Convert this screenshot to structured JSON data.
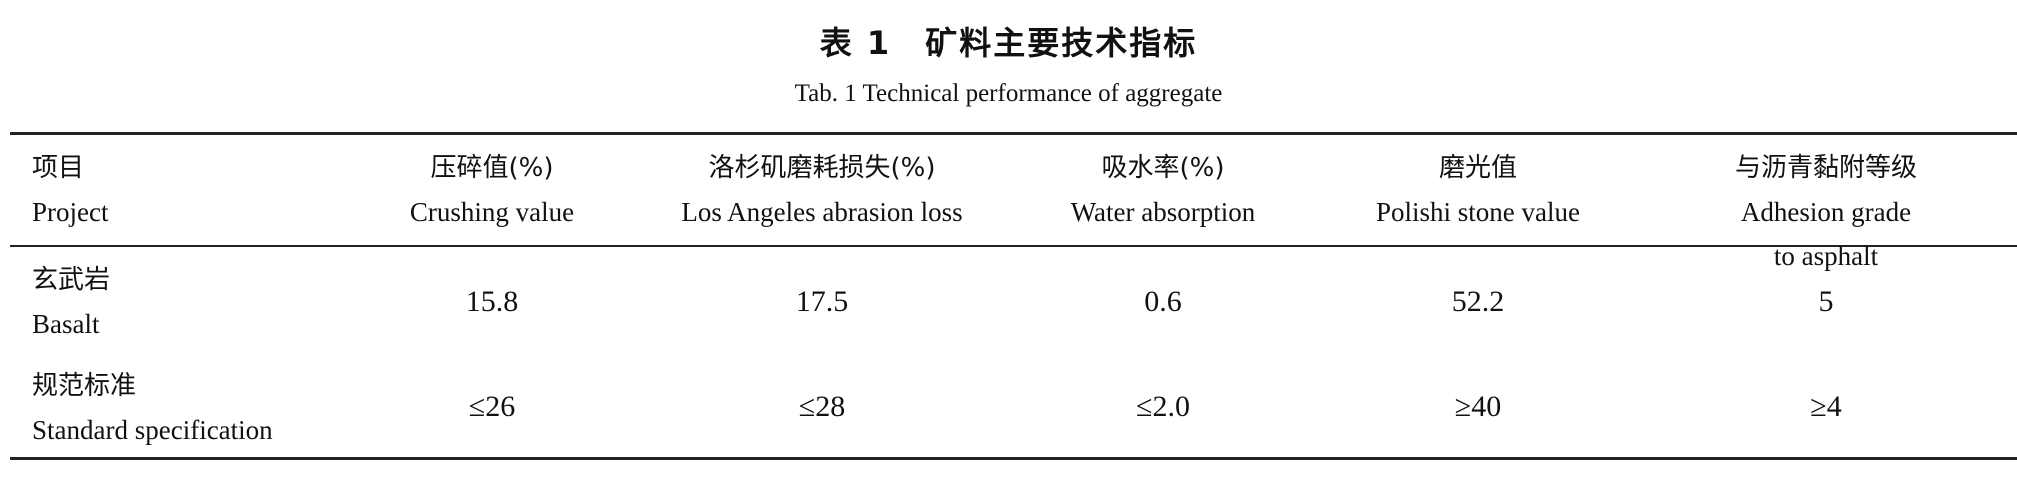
{
  "title": "表 1　矿料主要技术指标",
  "subtitle": "Tab. 1 Technical performance of aggregate",
  "table": {
    "headers": [
      {
        "zh": "项目",
        "en": "Project"
      },
      {
        "zh": "压碎值(%)",
        "en": "Crushing value"
      },
      {
        "zh": "洛杉矶磨耗损失(%)",
        "en": "Los Angeles abrasion loss"
      },
      {
        "zh": "吸水率(%)",
        "en": "Water absorption"
      },
      {
        "zh": "磨光值",
        "en": "Polishi stone value"
      },
      {
        "zh": "与沥青黏附等级",
        "en": "Adhesion grade to asphalt"
      }
    ],
    "rows": [
      {
        "zh": "玄武岩",
        "en": "Basalt",
        "values": [
          "15.8",
          "17.5",
          "0.6",
          "52.2",
          "5"
        ]
      },
      {
        "zh": "规范标准",
        "en": "Standard specification",
        "values": [
          "≤26",
          "≤28",
          "≤2.0",
          "≥40",
          "≥4"
        ]
      }
    ]
  }
}
